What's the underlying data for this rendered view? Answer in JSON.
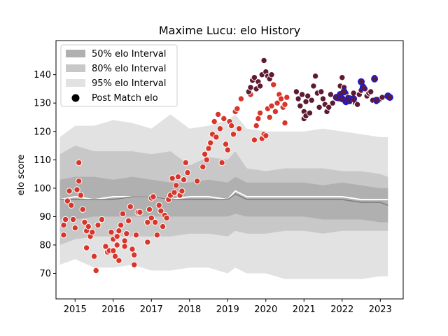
{
  "chart_data": {
    "type": "scatter",
    "title": "Maxime Lucu: elo History",
    "xlabel": "",
    "ylabel": "elo score",
    "xlim": [
      2014.5,
      2023.6
    ],
    "ylim": [
      61,
      152
    ],
    "x_ticks": [
      2015,
      2016,
      2017,
      2018,
      2019,
      2020,
      2021,
      2022,
      2023
    ],
    "y_ticks": [
      70,
      80,
      90,
      100,
      110,
      120,
      130,
      140
    ],
    "grid": false,
    "legend_position": "top-left",
    "legend": [
      {
        "label": "50% elo Interval",
        "color": "#b0b0b0"
      },
      {
        "label": "80% elo Interval",
        "color": "#c8c8c8"
      },
      {
        "label": "95% elo Interval",
        "color": "#e2e2e2"
      },
      {
        "label": "Post Match elo",
        "color": "#000000"
      }
    ],
    "colors": {
      "band50": "#b0b0b0",
      "band80": "#c8c8c8",
      "band95": "#e2e2e2",
      "median_line": "#808080",
      "mean_line": "#ffffff",
      "point_early": "#d9362b",
      "point_late": "#5e1a32",
      "point_highlight_edge": "#1a1adb",
      "point_edge": "#ffffff"
    },
    "bands": {
      "x": [
        2014.6,
        2015.0,
        2015.5,
        2016.0,
        2016.5,
        2017.0,
        2017.5,
        2018.0,
        2018.5,
        2019.0,
        2019.2,
        2019.5,
        2020.0,
        2020.5,
        2021.0,
        2021.5,
        2022.0,
        2022.5,
        2023.0,
        2023.2
      ],
      "p50_low": [
        89,
        89,
        90,
        90,
        90,
        90,
        90,
        90,
        90,
        90,
        91,
        90,
        90,
        90,
        90,
        89,
        89,
        89,
        88,
        88
      ],
      "p50_high": [
        103,
        104,
        104,
        103,
        104,
        103,
        102,
        102,
        103,
        102,
        104,
        102,
        102,
        102,
        102,
        101,
        102,
        101,
        100,
        100
      ],
      "p80_low": [
        80,
        82,
        83,
        83,
        83,
        83,
        83,
        84,
        84,
        83,
        85,
        84,
        84,
        85,
        85,
        84,
        85,
        85,
        85,
        85
      ],
      "p80_high": [
        112,
        115,
        113,
        113,
        113,
        112,
        113,
        108,
        111,
        110,
        113,
        107,
        106,
        107,
        107,
        107,
        106,
        106,
        105,
        104
      ],
      "p95_low": [
        73,
        75,
        72,
        72,
        73,
        71,
        71,
        72,
        72,
        70,
        72,
        70,
        70,
        68,
        68,
        68,
        68,
        68,
        69,
        69
      ],
      "p95_high": [
        118,
        122,
        122,
        124,
        123,
        121,
        126,
        121,
        122,
        124,
        126,
        121,
        120,
        120,
        120,
        121,
        120,
        119,
        118,
        118
      ],
      "median": [
        96,
        96,
        96,
        96,
        97,
        97,
        96,
        96,
        96,
        96,
        98,
        96,
        96,
        96,
        96,
        96,
        96,
        95,
        95,
        94
      ],
      "mean": [
        96,
        97,
        96,
        97,
        97,
        97,
        96,
        97,
        97,
        96,
        99,
        97,
        97,
        97,
        97,
        97,
        97,
        96,
        96,
        96
      ]
    },
    "series": [
      {
        "values": [
          [
            2014.7,
            83.5
          ],
          [
            2014.7,
            87
          ],
          [
            2014.75,
            89
          ],
          [
            2014.8,
            95.5
          ],
          [
            2014.85,
            99
          ],
          [
            2014.9,
            94
          ],
          [
            2014.95,
            89
          ],
          [
            2015.0,
            86
          ],
          [
            2015.05,
            99.5
          ],
          [
            2015.1,
            102.5
          ],
          [
            2015.1,
            109
          ],
          [
            2015.15,
            97.5
          ],
          [
            2015.2,
            92.5
          ],
          [
            2015.25,
            88
          ],
          [
            2015.3,
            79
          ],
          [
            2015.3,
            85
          ],
          [
            2015.35,
            86.5
          ],
          [
            2015.4,
            83
          ],
          [
            2015.45,
            84.5
          ],
          [
            2015.5,
            76
          ],
          [
            2015.55,
            71
          ],
          [
            2015.6,
            87
          ],
          [
            2015.7,
            89
          ],
          [
            2015.8,
            79.5
          ],
          [
            2015.85,
            77.5
          ],
          [
            2015.9,
            78
          ],
          [
            2015.95,
            84.5
          ],
          [
            2016.0,
            82
          ],
          [
            2016.0,
            78
          ],
          [
            2016.05,
            76
          ],
          [
            2016.1,
            80
          ],
          [
            2016.1,
            83
          ],
          [
            2016.15,
            85
          ],
          [
            2016.15,
            74.5
          ],
          [
            2016.2,
            87
          ],
          [
            2016.25,
            91
          ],
          [
            2016.3,
            79.5
          ],
          [
            2016.3,
            81.5
          ],
          [
            2016.35,
            84
          ],
          [
            2016.4,
            88.5
          ],
          [
            2016.45,
            93.5
          ],
          [
            2016.5,
            78.5
          ],
          [
            2016.55,
            76.5
          ],
          [
            2016.55,
            73
          ],
          [
            2016.6,
            83.5
          ],
          [
            2016.65,
            91.5
          ],
          [
            2016.7,
            91.5
          ],
          [
            2016.9,
            81
          ],
          [
            2016.9,
            88
          ],
          [
            2016.95,
            92.5
          ],
          [
            2017.0,
            96.5
          ],
          [
            2017.0,
            89.5
          ],
          [
            2017.05,
            97
          ],
          [
            2017.1,
            88
          ],
          [
            2017.15,
            83.5
          ],
          [
            2017.2,
            94
          ],
          [
            2017.25,
            92
          ],
          [
            2017.3,
            86.5
          ],
          [
            2017.35,
            90.5
          ],
          [
            2017.4,
            89.5
          ],
          [
            2017.45,
            96
          ],
          [
            2017.5,
            97.5
          ],
          [
            2017.55,
            103.5
          ],
          [
            2017.6,
            98.5
          ],
          [
            2017.65,
            101
          ],
          [
            2017.7,
            104
          ],
          [
            2017.75,
            97.5
          ],
          [
            2017.8,
            99
          ],
          [
            2017.85,
            103
          ],
          [
            2017.9,
            109
          ],
          [
            2017.95,
            105.5
          ],
          [
            2018.2,
            102.5
          ],
          [
            2018.35,
            107.5
          ],
          [
            2018.4,
            112
          ],
          [
            2018.45,
            110
          ],
          [
            2018.5,
            114
          ],
          [
            2018.55,
            116
          ],
          [
            2018.6,
            119
          ],
          [
            2018.65,
            123.5
          ],
          [
            2018.7,
            118
          ],
          [
            2018.75,
            126
          ],
          [
            2018.8,
            121
          ],
          [
            2018.85,
            109
          ],
          [
            2018.9,
            124.5
          ],
          [
            2018.95,
            115.5
          ],
          [
            2019.0,
            113.5
          ],
          [
            2019.05,
            123.5
          ],
          [
            2019.1,
            122
          ],
          [
            2019.15,
            119
          ],
          [
            2019.2,
            127
          ],
          [
            2019.25,
            128
          ],
          [
            2019.3,
            121
          ],
          [
            2019.35,
            131.5
          ],
          [
            2019.6,
            133
          ],
          [
            2019.7,
            117
          ],
          [
            2019.75,
            122
          ],
          [
            2019.8,
            124.5
          ],
          [
            2019.85,
            126.5
          ],
          [
            2019.9,
            117.5
          ],
          [
            2019.95,
            119
          ],
          [
            2020.0,
            118.5
          ],
          [
            2020.05,
            128
          ],
          [
            2020.1,
            125
          ],
          [
            2020.15,
            129
          ],
          [
            2020.2,
            136.5
          ],
          [
            2020.25,
            127
          ],
          [
            2020.3,
            130
          ],
          [
            2020.35,
            133
          ],
          [
            2020.4,
            131.5
          ],
          [
            2020.45,
            128.5
          ],
          [
            2020.5,
            123
          ],
          [
            2020.5,
            129.5
          ],
          [
            2020.55,
            132
          ]
        ]
      },
      {
        "values": [
          [
            2019.55,
            134
          ],
          [
            2019.6,
            135.5
          ],
          [
            2019.65,
            138
          ],
          [
            2019.7,
            139
          ],
          [
            2019.75,
            135
          ],
          [
            2019.8,
            137.5
          ],
          [
            2019.85,
            136
          ],
          [
            2019.9,
            140
          ],
          [
            2019.95,
            145
          ],
          [
            2020.0,
            141
          ],
          [
            2020.05,
            139.5
          ],
          [
            2020.1,
            138.5
          ],
          [
            2020.15,
            140
          ],
          [
            2020.8,
            134
          ],
          [
            2020.85,
            131.5
          ],
          [
            2020.9,
            129
          ],
          [
            2020.95,
            133
          ],
          [
            2021.0,
            127
          ],
          [
            2021.0,
            124.5
          ],
          [
            2021.05,
            130.5
          ],
          [
            2021.05,
            125.5
          ],
          [
            2021.1,
            132.5
          ],
          [
            2021.15,
            126.5
          ],
          [
            2021.2,
            131
          ],
          [
            2021.25,
            136
          ],
          [
            2021.3,
            139.5
          ],
          [
            2021.35,
            133.5
          ],
          [
            2021.4,
            128.5
          ],
          [
            2021.45,
            134
          ],
          [
            2021.5,
            131.5
          ],
          [
            2021.55,
            129.5
          ],
          [
            2021.6,
            127
          ],
          [
            2021.65,
            128.5
          ],
          [
            2021.7,
            133
          ],
          [
            2021.75,
            130
          ],
          [
            2021.9,
            131.5
          ],
          [
            2021.95,
            136
          ],
          [
            2022.0,
            139
          ],
          [
            2022.05,
            135.5
          ],
          [
            2022.1,
            133.5
          ],
          [
            2022.15,
            132
          ],
          [
            2022.2,
            130.5
          ],
          [
            2022.25,
            131.5
          ],
          [
            2022.3,
            133.5
          ],
          [
            2022.35,
            130
          ],
          [
            2022.4,
            129.5
          ],
          [
            2022.45,
            133
          ],
          [
            2022.5,
            134.5
          ],
          [
            2022.55,
            136
          ],
          [
            2022.6,
            135
          ],
          [
            2022.65,
            132.5
          ],
          [
            2022.7,
            133.5
          ],
          [
            2022.75,
            134
          ],
          [
            2022.8,
            131
          ],
          [
            2022.85,
            139
          ],
          [
            2022.9,
            130.5
          ],
          [
            2022.95,
            131
          ],
          [
            2023.0,
            131.5
          ],
          [
            2023.05,
            132
          ]
        ]
      },
      {
        "values": [
          [
            2021.85,
            132
          ],
          [
            2021.95,
            133
          ],
          [
            2022.0,
            131.5
          ],
          [
            2022.05,
            134
          ],
          [
            2022.1,
            130.5
          ],
          [
            2022.15,
            131
          ],
          [
            2022.2,
            131.5
          ],
          [
            2022.3,
            131.5
          ],
          [
            2022.5,
            137.5
          ],
          [
            2022.55,
            135.5
          ],
          [
            2022.85,
            138.5
          ],
          [
            2022.9,
            131
          ],
          [
            2023.2,
            132.5
          ],
          [
            2023.25,
            132
          ]
        ]
      }
    ]
  }
}
